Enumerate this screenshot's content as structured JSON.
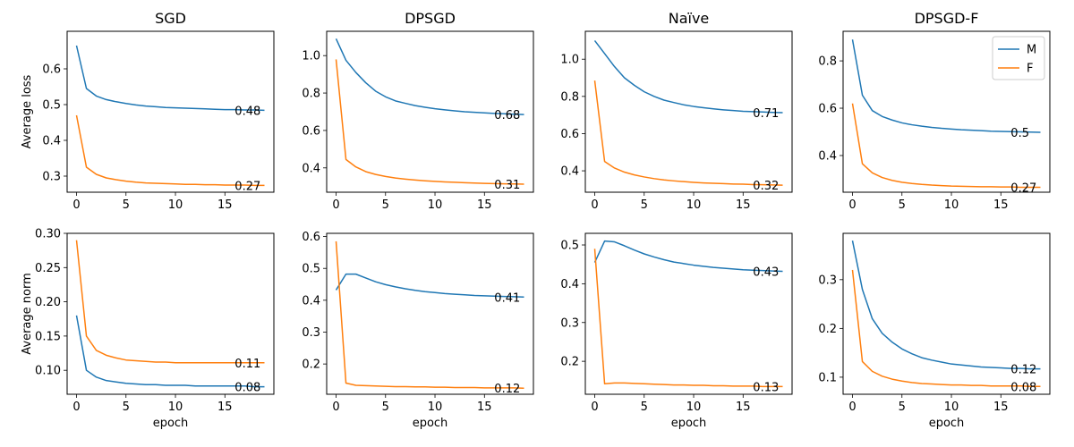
{
  "colors": {
    "M": "#1f77b4",
    "F": "#ff7f0e"
  },
  "chart_data": [
    {
      "type": "line",
      "title": "SGD",
      "xlabel": "",
      "ylabel": "Average loss",
      "xlim": [
        -0.95,
        19.95
      ],
      "ylim": [
        0.255,
        0.705
      ],
      "xticks": [
        0,
        5,
        10,
        15
      ],
      "yticks": [
        0.3,
        0.4,
        0.5,
        0.6
      ],
      "ytick_labels": [
        "0.3",
        "0.4",
        "0.5",
        "0.6"
      ],
      "series": [
        {
          "key": "M",
          "values": [
            0.665,
            0.545,
            0.524,
            0.514,
            0.508,
            0.503,
            0.499,
            0.496,
            0.494,
            0.492,
            0.491,
            0.49,
            0.489,
            0.488,
            0.487,
            0.486,
            0.486,
            0.485,
            0.485,
            0.484
          ],
          "end_label": "0.48"
        },
        {
          "key": "F",
          "values": [
            0.47,
            0.325,
            0.305,
            0.295,
            0.29,
            0.286,
            0.283,
            0.281,
            0.28,
            0.279,
            0.278,
            0.277,
            0.277,
            0.276,
            0.276,
            0.275,
            0.275,
            0.275,
            0.274,
            0.274
          ],
          "end_label": "0.27"
        }
      ]
    },
    {
      "type": "line",
      "title": "DPSGD",
      "xlabel": "",
      "ylabel": "",
      "xlim": [
        -0.95,
        19.95
      ],
      "ylim": [
        0.27,
        1.13
      ],
      "xticks": [
        0,
        5,
        10,
        15
      ],
      "yticks": [
        0.4,
        0.6,
        0.8,
        1.0
      ],
      "ytick_labels": [
        "0.4",
        "0.6",
        "0.8",
        "1.0"
      ],
      "series": [
        {
          "key": "M",
          "values": [
            1.09,
            0.975,
            0.91,
            0.855,
            0.81,
            0.78,
            0.758,
            0.745,
            0.733,
            0.724,
            0.716,
            0.71,
            0.705,
            0.7,
            0.697,
            0.694,
            0.691,
            0.689,
            0.687,
            0.685
          ],
          "end_label": "0.68"
        },
        {
          "key": "F",
          "values": [
            0.98,
            0.445,
            0.405,
            0.38,
            0.365,
            0.354,
            0.346,
            0.34,
            0.335,
            0.331,
            0.328,
            0.325,
            0.323,
            0.321,
            0.319,
            0.317,
            0.316,
            0.315,
            0.314,
            0.313
          ],
          "end_label": "0.31"
        }
      ]
    },
    {
      "type": "line",
      "title": "Naïve",
      "xlabel": "",
      "ylabel": "",
      "xlim": [
        -0.95,
        19.95
      ],
      "ylim": [
        0.285,
        1.15
      ],
      "xticks": [
        0,
        5,
        10,
        15
      ],
      "yticks": [
        0.4,
        0.6,
        0.8,
        1.0
      ],
      "ytick_labels": [
        "0.4",
        "0.6",
        "0.8",
        "1.0"
      ],
      "series": [
        {
          "key": "M",
          "values": [
            1.1,
            1.03,
            0.96,
            0.9,
            0.86,
            0.825,
            0.8,
            0.78,
            0.767,
            0.755,
            0.746,
            0.739,
            0.733,
            0.728,
            0.724,
            0.72,
            0.718,
            0.716,
            0.714,
            0.713
          ],
          "end_label": "0.71"
        },
        {
          "key": "F",
          "values": [
            0.885,
            0.45,
            0.415,
            0.393,
            0.378,
            0.367,
            0.358,
            0.351,
            0.346,
            0.342,
            0.338,
            0.335,
            0.333,
            0.331,
            0.329,
            0.328,
            0.326,
            0.325,
            0.324,
            0.323
          ],
          "end_label": "0.32"
        }
      ]
    },
    {
      "type": "line",
      "title": "DPSGD-F",
      "xlabel": "",
      "ylabel": "",
      "xlim": [
        -0.95,
        19.95
      ],
      "ylim": [
        0.245,
        0.925
      ],
      "xticks": [
        0,
        5,
        10,
        15
      ],
      "yticks": [
        0.4,
        0.6,
        0.8
      ],
      "ytick_labels": [
        "0.4",
        "0.6",
        "0.8"
      ],
      "legend": {
        "position": "top-right",
        "entries": [
          {
            "key": "M",
            "label": "M"
          },
          {
            "key": "F",
            "label": "F"
          }
        ]
      },
      "series": [
        {
          "key": "M",
          "values": [
            0.89,
            0.655,
            0.59,
            0.565,
            0.55,
            0.538,
            0.53,
            0.524,
            0.519,
            0.515,
            0.512,
            0.509,
            0.507,
            0.505,
            0.503,
            0.502,
            0.501,
            0.5,
            0.499,
            0.498
          ],
          "end_label": "0.5"
        },
        {
          "key": "F",
          "values": [
            0.62,
            0.365,
            0.327,
            0.307,
            0.295,
            0.287,
            0.282,
            0.278,
            0.275,
            0.273,
            0.271,
            0.27,
            0.269,
            0.268,
            0.268,
            0.267,
            0.267,
            0.266,
            0.266,
            0.266
          ],
          "end_label": "0.27"
        }
      ]
    },
    {
      "type": "line",
      "title": "",
      "xlabel": "epoch",
      "ylabel": "Average norm",
      "xlim": [
        -0.95,
        19.95
      ],
      "ylim": [
        0.065,
        0.3
      ],
      "xticks": [
        0,
        5,
        10,
        15
      ],
      "yticks": [
        0.1,
        0.15,
        0.2,
        0.25,
        0.3
      ],
      "ytick_labels": [
        "0.10",
        "0.15",
        "0.20",
        "0.25",
        "0.30"
      ],
      "series": [
        {
          "key": "M",
          "values": [
            0.18,
            0.1,
            0.09,
            0.085,
            0.083,
            0.081,
            0.08,
            0.079,
            0.079,
            0.078,
            0.078,
            0.078,
            0.077,
            0.077,
            0.077,
            0.077,
            0.077,
            0.077,
            0.076,
            0.076
          ],
          "end_label": "0.08"
        },
        {
          "key": "F",
          "values": [
            0.29,
            0.15,
            0.129,
            0.122,
            0.118,
            0.115,
            0.114,
            0.113,
            0.112,
            0.112,
            0.111,
            0.111,
            0.111,
            0.111,
            0.111,
            0.111,
            0.111,
            0.111,
            0.111,
            0.111
          ],
          "end_label": "0.11"
        }
      ]
    },
    {
      "type": "line",
      "title": "",
      "xlabel": "epoch",
      "ylabel": "",
      "xlim": [
        -0.95,
        19.95
      ],
      "ylim": [
        0.105,
        0.61
      ],
      "xticks": [
        0,
        5,
        10,
        15
      ],
      "yticks": [
        0.2,
        0.3,
        0.4,
        0.5,
        0.6
      ],
      "ytick_labels": [
        "0.2",
        "0.3",
        "0.4",
        "0.5",
        "0.6"
      ],
      "series": [
        {
          "key": "M",
          "values": [
            0.432,
            0.482,
            0.482,
            0.47,
            0.458,
            0.449,
            0.442,
            0.436,
            0.431,
            0.427,
            0.424,
            0.421,
            0.419,
            0.417,
            0.415,
            0.414,
            0.413,
            0.412,
            0.411,
            0.41
          ],
          "end_label": "0.41"
        },
        {
          "key": "F",
          "values": [
            0.585,
            0.14,
            0.133,
            0.132,
            0.131,
            0.13,
            0.129,
            0.129,
            0.128,
            0.128,
            0.127,
            0.127,
            0.126,
            0.126,
            0.126,
            0.125,
            0.125,
            0.125,
            0.125,
            0.124
          ],
          "end_label": "0.12"
        }
      ]
    },
    {
      "type": "line",
      "title": "",
      "xlabel": "epoch",
      "ylabel": "",
      "xlim": [
        -0.95,
        19.95
      ],
      "ylim": [
        0.115,
        0.53
      ],
      "xticks": [
        0,
        5,
        10,
        15
      ],
      "yticks": [
        0.2,
        0.3,
        0.4,
        0.5
      ],
      "ytick_labels": [
        "0.2",
        "0.3",
        "0.4",
        "0.5"
      ],
      "series": [
        {
          "key": "M",
          "values": [
            0.455,
            0.51,
            0.508,
            0.498,
            0.487,
            0.477,
            0.469,
            0.462,
            0.456,
            0.452,
            0.448,
            0.445,
            0.442,
            0.44,
            0.438,
            0.436,
            0.435,
            0.434,
            0.433,
            0.432
          ],
          "end_label": "0.43"
        },
        {
          "key": "F",
          "values": [
            0.49,
            0.142,
            0.144,
            0.144,
            0.143,
            0.142,
            0.141,
            0.14,
            0.139,
            0.139,
            0.138,
            0.138,
            0.137,
            0.137,
            0.136,
            0.136,
            0.136,
            0.135,
            0.135,
            0.135
          ],
          "end_label": "0.13"
        }
      ]
    },
    {
      "type": "line",
      "title": "",
      "xlabel": "epoch",
      "ylabel": "",
      "xlim": [
        -0.95,
        19.95
      ],
      "ylim": [
        0.065,
        0.395
      ],
      "xticks": [
        0,
        5,
        10,
        15
      ],
      "yticks": [
        0.1,
        0.2,
        0.3
      ],
      "ytick_labels": [
        "0.1",
        "0.2",
        "0.3"
      ],
      "series": [
        {
          "key": "M",
          "values": [
            0.38,
            0.28,
            0.22,
            0.19,
            0.172,
            0.158,
            0.148,
            0.14,
            0.135,
            0.131,
            0.127,
            0.125,
            0.123,
            0.121,
            0.12,
            0.119,
            0.118,
            0.118,
            0.117,
            0.117
          ],
          "end_label": "0.12"
        },
        {
          "key": "F",
          "values": [
            0.32,
            0.132,
            0.112,
            0.102,
            0.096,
            0.092,
            0.089,
            0.087,
            0.086,
            0.085,
            0.084,
            0.084,
            0.083,
            0.083,
            0.082,
            0.082,
            0.082,
            0.082,
            0.081,
            0.081
          ],
          "end_label": "0.08"
        }
      ]
    }
  ]
}
